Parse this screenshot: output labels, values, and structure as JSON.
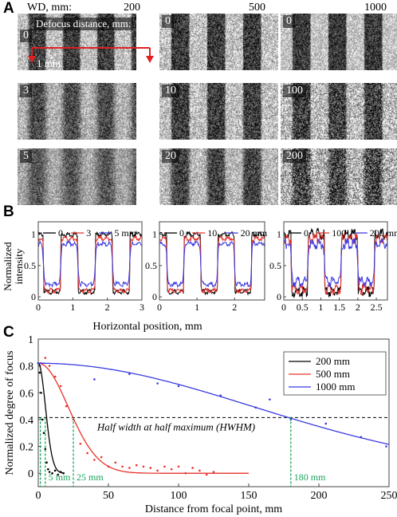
{
  "panelA": {
    "letter": "A",
    "wd_label": "WD, mm:",
    "defocus_label": "Defocus distance, mm:",
    "scale_bar": "1 mm",
    "columns": [
      {
        "wd": "200",
        "rows": [
          "0",
          "3",
          "5"
        ],
        "blur": [
          0.12,
          0.5,
          0.85
        ],
        "noise": [
          0.55,
          0.55,
          0.5
        ],
        "period": 43
      },
      {
        "wd": "500",
        "rows": [
          "0",
          "10",
          "20"
        ],
        "blur": [
          0.05,
          0.12,
          0.3
        ],
        "noise": [
          0.65,
          0.65,
          0.6
        ],
        "period": 45
      },
      {
        "wd": "1000",
        "rows": [
          "0",
          "100",
          "200"
        ],
        "blur": [
          0.05,
          0.12,
          0.28
        ],
        "noise": [
          0.5,
          0.85,
          1.0
        ],
        "period": 45
      }
    ]
  },
  "panelB": {
    "letter": "B",
    "ylabel": "Normalized\nintensity",
    "xlabel": "Horizontal position, mm",
    "plots": [
      {
        "legend": [
          "0",
          "3",
          "5 mm"
        ],
        "xticks": [
          "0",
          "1",
          "2",
          "3"
        ],
        "xmax": 3
      },
      {
        "legend": [
          "0",
          "10",
          "20 mm"
        ],
        "xticks": [
          "0",
          "1",
          "2"
        ],
        "xmax": 2.8
      },
      {
        "legend": [
          "0",
          "100",
          "200 mm"
        ],
        "xticks": [
          "0",
          "0.5",
          "1",
          "1.5",
          "2",
          "2.5"
        ],
        "xmax": 2.8
      }
    ],
    "yticks": [
      "0",
      "0.5",
      "1"
    ],
    "colors": [
      "#000000",
      "#e8302a",
      "#3a3ae0"
    ]
  },
  "chart_data": {
    "type": "scatter",
    "title": "",
    "letter": "C",
    "xlabel": "Distance from focal point, mm",
    "ylabel": "Normalized degree of focus",
    "xlim": [
      0,
      250
    ],
    "ylim": [
      -0.1,
      1.0
    ],
    "xticks": [
      0,
      50,
      100,
      150,
      200,
      250
    ],
    "yticks": [
      0,
      0.2,
      0.4,
      0.6,
      0.8,
      1
    ],
    "hwhm_level": 0.415,
    "hwhm_label": "Half width at half maximum (HWHM)",
    "legend_position": "top-right",
    "series": [
      {
        "name": "200 mm",
        "color": "#000000",
        "hwhm": 5,
        "hwhm_label": "5 mm",
        "points": [
          [
            0,
            0.82
          ],
          [
            1,
            0.75
          ],
          [
            2,
            0.6
          ],
          [
            3,
            0.4
          ],
          [
            4,
            0.3
          ],
          [
            5,
            0.18
          ],
          [
            6,
            0.08
          ],
          [
            7,
            0.03
          ],
          [
            8,
            0.01
          ],
          [
            10,
            0.0
          ],
          [
            12,
            0.02
          ],
          [
            14,
            -0.01
          ],
          [
            16,
            0.01
          ],
          [
            18,
            0.0
          ]
        ]
      },
      {
        "name": "500 mm",
        "color": "#e8302a",
        "hwhm": 25,
        "hwhm_label": "25 mm",
        "points": [
          [
            2,
            0.82
          ],
          [
            5,
            0.86
          ],
          [
            8,
            0.8
          ],
          [
            12,
            0.72
          ],
          [
            16,
            0.65
          ],
          [
            20,
            0.5
          ],
          [
            25,
            0.4
          ],
          [
            30,
            0.22
          ],
          [
            35,
            0.15
          ],
          [
            40,
            0.1
          ],
          [
            45,
            0.12
          ],
          [
            50,
            0.05
          ],
          [
            55,
            0.08
          ],
          [
            60,
            0.05
          ],
          [
            65,
            0.04
          ],
          [
            70,
            0.06
          ],
          [
            75,
            0.05
          ],
          [
            80,
            0.04
          ],
          [
            85,
            0.02
          ],
          [
            90,
            0.05
          ],
          [
            95,
            0.03
          ],
          [
            100,
            0.05
          ],
          [
            105,
            0.0
          ],
          [
            110,
            0.04
          ],
          [
            115,
            0.02
          ],
          [
            120,
            -0.01
          ],
          [
            125,
            0.01
          ]
        ]
      },
      {
        "name": "1000 mm",
        "color": "#3a3ae0",
        "hwhm": 180,
        "hwhm_label": "180 mm",
        "points": [
          [
            0,
            0.82
          ],
          [
            40,
            0.7
          ],
          [
            65,
            0.74
          ],
          [
            85,
            0.67
          ],
          [
            100,
            0.65
          ],
          [
            130,
            0.58
          ],
          [
            155,
            0.49
          ],
          [
            165,
            0.55
          ],
          [
            180,
            0.4
          ],
          [
            205,
            0.37
          ],
          [
            230,
            0.27
          ],
          [
            248,
            0.2
          ]
        ]
      }
    ]
  }
}
